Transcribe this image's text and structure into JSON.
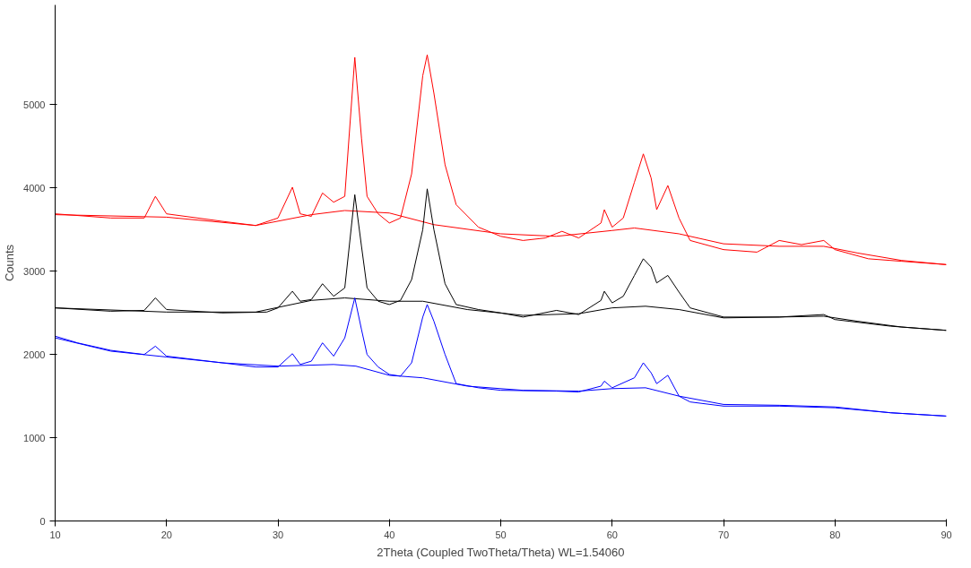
{
  "chart_data": {
    "type": "line",
    "xlabel": "2Theta (Coupled TwoTheta/Theta) WL=1.54060",
    "ylabel": "Counts",
    "xlim": [
      10,
      90
    ],
    "ylim": [
      0,
      6200
    ],
    "xticks": [
      10,
      20,
      30,
      40,
      50,
      60,
      70,
      80,
      90
    ],
    "yticks": [
      0,
      1000,
      2000,
      3000,
      4000,
      5000
    ],
    "grid": false,
    "marker": "none",
    "line_style": "solid",
    "series": [
      {
        "color": "#ff0000",
        "x": [
          10,
          15,
          18,
          19,
          20,
          25,
          28,
          30,
          31.3,
          32,
          33,
          34,
          35,
          36,
          36.9,
          37.5,
          38,
          39,
          40,
          41,
          42,
          43,
          43.4,
          44,
          45,
          46,
          48,
          50,
          52,
          54,
          55.5,
          57,
          59,
          59.3,
          60,
          61,
          62,
          62.8,
          63.5,
          64,
          65,
          66,
          67,
          70,
          73,
          75,
          77,
          79,
          80,
          83,
          86,
          90
        ],
        "values": [
          3690,
          3640,
          3640,
          3900,
          3690,
          3600,
          3550,
          3640,
          4010,
          3690,
          3660,
          3940,
          3830,
          3900,
          5570,
          4600,
          3900,
          3690,
          3580,
          3640,
          4170,
          5350,
          5600,
          5140,
          4280,
          3800,
          3530,
          3420,
          3370,
          3400,
          3480,
          3400,
          3580,
          3740,
          3530,
          3640,
          4070,
          4410,
          4120,
          3740,
          4030,
          3640,
          3370,
          3260,
          3230,
          3370,
          3320,
          3370,
          3260,
          3150,
          3120,
          3080
        ]
      },
      {
        "color": "#ff0000",
        "x": [
          10,
          20,
          28,
          33,
          36,
          40,
          44,
          50,
          55,
          60,
          62,
          66,
          70,
          75,
          79,
          82,
          86,
          90
        ],
        "values": [
          3680,
          3650,
          3550,
          3680,
          3730,
          3700,
          3560,
          3450,
          3420,
          3490,
          3520,
          3450,
          3330,
          3300,
          3300,
          3220,
          3130,
          3080
        ]
      },
      {
        "color": "#000000",
        "x": [
          10,
          15,
          18,
          19,
          20,
          25,
          29,
          30,
          31.3,
          32,
          33,
          34,
          35,
          36,
          36.9,
          37.5,
          38,
          39,
          40,
          41,
          42,
          43,
          43.4,
          44,
          45,
          46,
          48,
          50,
          52,
          55,
          57,
          59,
          59.3,
          60,
          61,
          62,
          62.8,
          63.5,
          64,
          65,
          66,
          67,
          70,
          75,
          79,
          80,
          85,
          90
        ],
        "values": [
          2560,
          2520,
          2530,
          2680,
          2540,
          2500,
          2510,
          2560,
          2760,
          2640,
          2660,
          2850,
          2700,
          2800,
          3920,
          3300,
          2800,
          2640,
          2600,
          2650,
          2900,
          3500,
          3990,
          3500,
          2850,
          2600,
          2540,
          2500,
          2450,
          2530,
          2480,
          2650,
          2760,
          2620,
          2700,
          2950,
          3150,
          3050,
          2860,
          2950,
          2750,
          2560,
          2450,
          2450,
          2480,
          2420,
          2340,
          2290
        ]
      },
      {
        "color": "#000000",
        "x": [
          10,
          20,
          28,
          33,
          36,
          40,
          43,
          47,
          52,
          57,
          60,
          63,
          66,
          70,
          75,
          79,
          82,
          86,
          90
        ],
        "values": [
          2560,
          2510,
          2510,
          2650,
          2680,
          2640,
          2640,
          2540,
          2470,
          2490,
          2560,
          2580,
          2540,
          2440,
          2450,
          2460,
          2400,
          2330,
          2290
        ]
      },
      {
        "color": "#0000ff",
        "x": [
          10,
          12,
          15,
          18,
          19,
          20,
          25,
          28,
          30,
          31.3,
          32,
          33,
          34,
          35,
          36,
          36.9,
          37.5,
          38,
          39,
          40,
          41,
          42,
          43,
          43.4,
          44,
          45,
          46,
          48,
          50,
          55,
          57,
          59,
          59.3,
          60,
          62,
          62.8,
          63.5,
          64,
          65,
          66,
          67,
          70,
          75,
          80,
          85,
          90
        ],
        "values": [
          2220,
          2140,
          2050,
          2000,
          2100,
          1980,
          1900,
          1850,
          1850,
          2010,
          1880,
          1920,
          2140,
          1980,
          2200,
          2680,
          2300,
          2000,
          1850,
          1760,
          1740,
          1900,
          2450,
          2600,
          2400,
          2000,
          1650,
          1600,
          1570,
          1560,
          1550,
          1620,
          1680,
          1600,
          1720,
          1900,
          1780,
          1650,
          1750,
          1500,
          1430,
          1380,
          1380,
          1360,
          1300,
          1260
        ]
      },
      {
        "color": "#0000ff",
        "x": [
          10,
          15,
          20,
          25,
          30,
          35,
          37,
          40,
          43,
          47,
          52,
          57,
          60,
          63,
          66,
          70,
          75,
          80,
          85,
          90
        ],
        "values": [
          2200,
          2040,
          1970,
          1900,
          1860,
          1880,
          1860,
          1750,
          1720,
          1620,
          1570,
          1560,
          1590,
          1600,
          1500,
          1400,
          1390,
          1370,
          1300,
          1260
        ]
      }
    ]
  }
}
